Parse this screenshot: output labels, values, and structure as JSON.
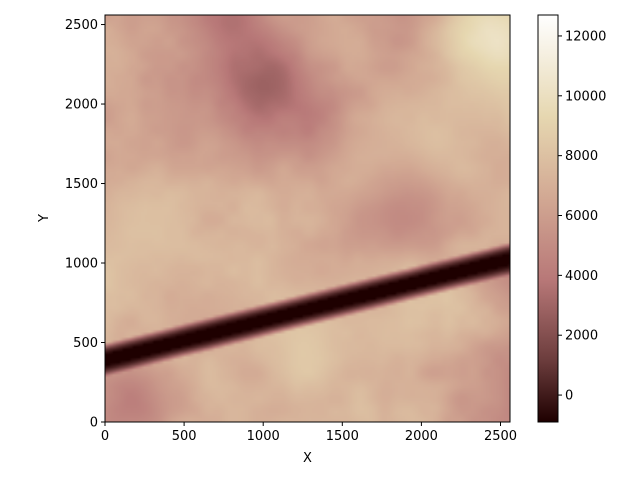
{
  "chart_data": {
    "type": "heatmap",
    "title": "",
    "xlabel": "X",
    "ylabel": "Y",
    "xlim": [
      0,
      2560
    ],
    "ylim": [
      0,
      2560
    ],
    "x_ticks": [
      0,
      500,
      1000,
      1500,
      2000,
      2500
    ],
    "y_ticks": [
      0,
      500,
      1000,
      1500,
      2000,
      2500
    ],
    "grid": false,
    "colorbar": {
      "range": [
        -900,
        12700
      ],
      "ticks": [
        0,
        2000,
        4000,
        6000,
        8000,
        10000,
        12000
      ],
      "colormap": "pink"
    },
    "features": [
      {
        "kind": "linear-trough",
        "from": [
          0,
          390
        ],
        "to": [
          2560,
          1025
        ],
        "half_width": 65,
        "value": -900
      }
    ],
    "background": {
      "description_values": "mottled field with values mostly between 3000 and 9000",
      "hot_spots": [
        {
          "x": 2480,
          "y": 2420,
          "value": 12300
        },
        {
          "x": 1250,
          "y": 520,
          "value": 9800
        },
        {
          "x": 2000,
          "y": 1700,
          "value": 8800
        },
        {
          "x": 150,
          "y": 1200,
          "value": 8200
        }
      ],
      "cold_spots": [
        {
          "x": 1050,
          "y": 2150,
          "value": 1200
        },
        {
          "x": 800,
          "y": 2520,
          "value": 1800
        },
        {
          "x": 200,
          "y": 120,
          "value": 2500
        },
        {
          "x": 1900,
          "y": 1300,
          "value": 3000
        }
      ]
    }
  }
}
